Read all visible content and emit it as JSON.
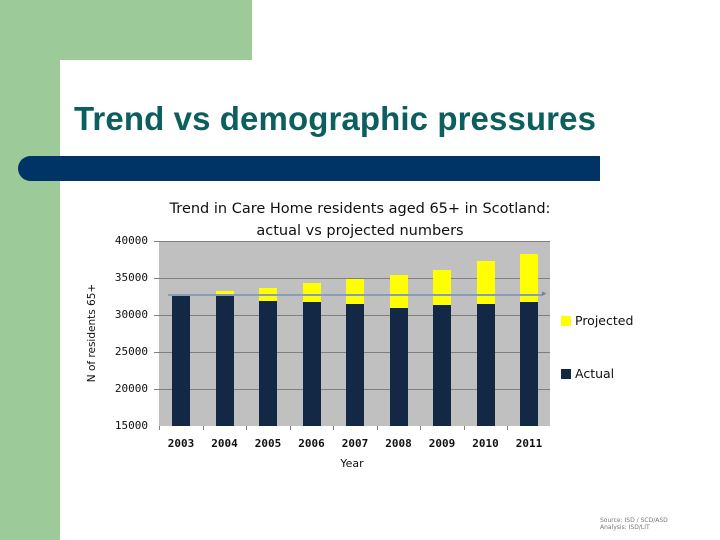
{
  "slide": {
    "title": "Trend vs demographic pressures",
    "colors": {
      "green": "#9ccb99",
      "navy_bar": "#003366",
      "title_teal": "#0d5e5e"
    },
    "footnote": [
      "Source: ISD / SCD/ASD",
      "Analysis: ISD/LIT"
    ]
  },
  "chart_data": {
    "type": "bar",
    "stacked": true,
    "title": "Trend in Care Home residents aged 65+ in Scotland: actual vs projected numbers",
    "title_lines": [
      "Trend in Care Home residents aged 65+ in Scotland:",
      "actual vs projected numbers"
    ],
    "xlabel": "Year",
    "ylabel": "N of residents 65+",
    "ylim": [
      15000,
      40000
    ],
    "yticks": [
      "40000",
      "35000",
      "30000",
      "25000",
      "20000",
      "15000"
    ],
    "categories": [
      "2003",
      "2004",
      "2005",
      "2006",
      "2007",
      "2008",
      "2009",
      "2010",
      "2011"
    ],
    "series": [
      {
        "name": "Actual",
        "color": "#132844",
        "values": [
          32800,
          32600,
          31900,
          31800,
          31500,
          31000,
          31350,
          31500,
          31750
        ]
      },
      {
        "name": "Projected",
        "color": "#ffff00",
        "values": [
          100,
          650,
          1750,
          2500,
          3400,
          4400,
          4750,
          5800,
          6450
        ]
      }
    ],
    "projected_totals": [
      32900,
      33250,
      33650,
      34300,
      34900,
      35400,
      36100,
      37300,
      38200
    ],
    "reference_line": {
      "value": 32900,
      "color": "#8a9cb8"
    },
    "legend": [
      {
        "label": "Projected",
        "color": "#ffff00"
      },
      {
        "label": "Actual",
        "color": "#132844"
      }
    ],
    "legend_position": "right",
    "grid": true,
    "plot_background": "#c0c0c0"
  }
}
